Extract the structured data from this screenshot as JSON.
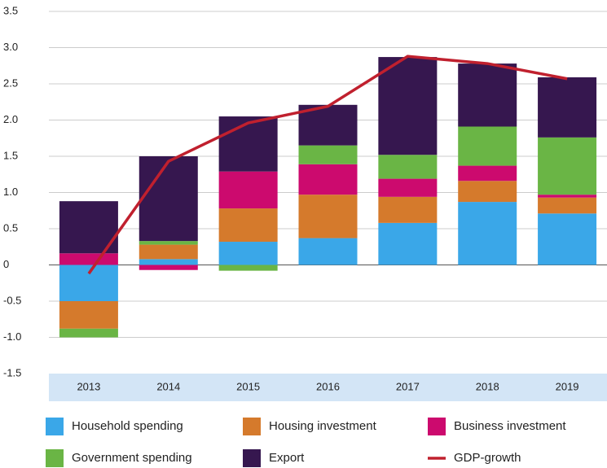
{
  "chart_data": {
    "type": "stacked-bar-line",
    "categories": [
      "2013",
      "2014",
      "2015",
      "2016",
      "2017",
      "2018",
      "2019"
    ],
    "series": [
      {
        "name": "Household spending",
        "color": "#3aa7e8",
        "values": [
          -0.5,
          0.08,
          0.32,
          0.37,
          0.58,
          0.87,
          0.71
        ]
      },
      {
        "name": "Housing investment",
        "color": "#d57a2c",
        "values": [
          -0.38,
          0.2,
          0.46,
          0.6,
          0.36,
          0.29,
          0.22
        ]
      },
      {
        "name": "Business investment",
        "color": "#cc0a6e",
        "values": [
          0.16,
          -0.07,
          0.51,
          0.42,
          0.25,
          0.21,
          0.04
        ]
      },
      {
        "name": "Government spending",
        "color": "#6ab545",
        "values": [
          -0.12,
          0.05,
          -0.08,
          0.26,
          0.33,
          0.54,
          0.79
        ]
      },
      {
        "name": "Export",
        "color": "#36174f",
        "values": [
          0.72,
          1.17,
          0.76,
          0.56,
          1.35,
          0.87,
          0.83
        ]
      },
      {
        "name": "GDP-growth",
        "color": "#c0202e",
        "type": "line",
        "values": [
          -0.12,
          1.43,
          1.96,
          2.19,
          2.88,
          2.78,
          2.57
        ]
      }
    ],
    "ylim": [
      -1.5,
      3.5
    ],
    "yticks": [
      -1.5,
      {
        "value": -1.0,
        "label": "-1.0"
      },
      -0.5,
      0,
      0.5,
      {
        "value": 1.0,
        "label": "1.0"
      },
      1.5,
      {
        "value": 2.0,
        "label": "2.0"
      },
      2.5,
      {
        "value": 3.0,
        "label": "3.0"
      },
      3.5
    ],
    "grid": true
  }
}
